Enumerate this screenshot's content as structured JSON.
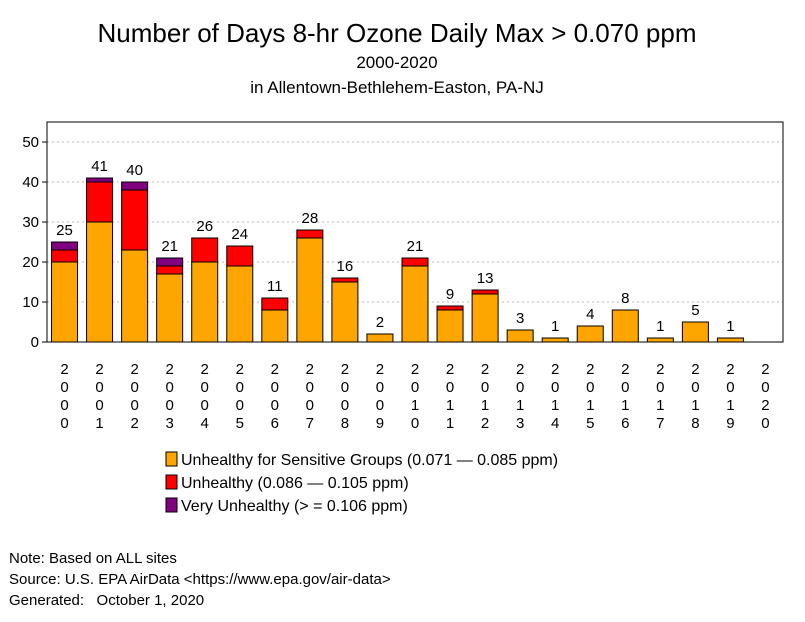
{
  "chart_data": {
    "type": "bar",
    "stacked": true,
    "title": "Number of Days 8-hr Ozone Daily Max > 0.070 ppm",
    "subtitle": "2000-2020",
    "subtitle2": "in Allentown-Bethlehem-Easton, PA-NJ",
    "categories": [
      "2000",
      "2001",
      "2002",
      "2003",
      "2004",
      "2005",
      "2006",
      "2007",
      "2008",
      "2009",
      "2010",
      "2011",
      "2012",
      "2013",
      "2014",
      "2015",
      "2016",
      "2017",
      "2018",
      "2019",
      "2020"
    ],
    "series": [
      {
        "name": "Unhealthy for Sensitive Groups (0.071 — 0.085 ppm)",
        "color": "#ffa500",
        "values": [
          20,
          30,
          23,
          17,
          20,
          19,
          8,
          26,
          15,
          2,
          19,
          8,
          12,
          3,
          1,
          4,
          8,
          1,
          5,
          1,
          0
        ]
      },
      {
        "name": "Unhealthy (0.086 — 0.105 ppm)",
        "color": "#ff0000",
        "values": [
          3,
          10,
          15,
          2,
          6,
          5,
          3,
          2,
          1,
          0,
          2,
          1,
          1,
          0,
          0,
          0,
          0,
          0,
          0,
          0,
          0
        ]
      },
      {
        "name": "Very Unhealthy (> =  0.106 ppm)",
        "color": "#800080",
        "values": [
          2,
          1,
          2,
          2,
          0,
          0,
          0,
          0,
          0,
          0,
          0,
          0,
          0,
          0,
          0,
          0,
          0,
          0,
          0,
          0,
          0
        ]
      }
    ],
    "totals": [
      "25",
      "41",
      "40",
      "21",
      "26",
      "24",
      "11",
      "28",
      "16",
      "2",
      "21",
      "9",
      "13",
      "3",
      "1",
      "4",
      "8",
      "1",
      "5",
      "1",
      ""
    ],
    "ylim": [
      0,
      55
    ],
    "yticks": [
      "0",
      "10",
      "20",
      "30",
      "40",
      "50"
    ],
    "grid": true,
    "legend_position": "bottom"
  },
  "notes": [
    "Note: Based on ALL sites",
    "Source: U.S. EPA AirData <https://www.epa.gov/air-data>",
    "Generated:   October 1, 2020"
  ]
}
